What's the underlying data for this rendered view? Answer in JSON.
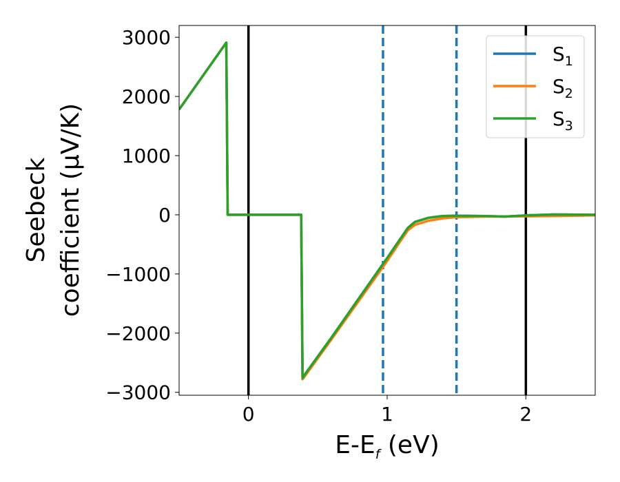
{
  "chart_data": {
    "type": "line",
    "xlabel": {
      "main": "E-E",
      "sub": "f",
      "unit": " (eV)"
    },
    "ylabel": {
      "line1": "Seebeck",
      "line2": "coefficient  (μV/K)"
    },
    "xlim": [
      -0.5,
      2.5
    ],
    "ylim": [
      -3050,
      3200
    ],
    "xticks": [
      0,
      1,
      2
    ],
    "xtick_labels": [
      "0",
      "1",
      "2"
    ],
    "yticks": [
      -3000,
      -2000,
      -1000,
      0,
      1000,
      2000,
      3000
    ],
    "ytick_labels": [
      "−3000",
      "−2000",
      "−1000",
      "0",
      "1000",
      "2000",
      "3000"
    ],
    "grid": false,
    "legend_position": "top-right",
    "vlines": [
      {
        "x": 0,
        "style": "solid",
        "color": "#000000"
      },
      {
        "x": 0.97,
        "style": "dashed",
        "color": "#1f77b4"
      },
      {
        "x": 1.5,
        "style": "dashed",
        "color": "#1f77b4"
      },
      {
        "x": 2,
        "style": "solid",
        "color": "#000000"
      }
    ],
    "series": [
      {
        "name": "S",
        "subscript": "1",
        "color": "#1f77b4",
        "x": [
          -0.5,
          -0.16,
          -0.15,
          0.0,
          0.38,
          0.39,
          0.4,
          0.6,
          0.8,
          1.0,
          1.1,
          1.15,
          1.2,
          1.3,
          1.4,
          1.5,
          1.7,
          1.85,
          2.0,
          2.2,
          2.5
        ],
        "y": [
          1780,
          2910,
          0,
          0,
          0,
          -2760,
          -2720,
          -2070,
          -1400,
          -730,
          -390,
          -220,
          -120,
          -50,
          -20,
          -15,
          -20,
          -30,
          -10,
          5,
          0
        ]
      },
      {
        "name": "S",
        "subscript": "2",
        "color": "#ff7f0e",
        "x": [
          -0.5,
          -0.16,
          -0.15,
          0.0,
          0.38,
          0.39,
          0.4,
          0.6,
          0.8,
          1.0,
          1.1,
          1.15,
          1.2,
          1.3,
          1.4,
          1.5,
          1.7,
          1.85,
          2.0,
          2.2,
          2.5
        ],
        "y": [
          1780,
          2910,
          0,
          0,
          0,
          -2780,
          -2750,
          -2100,
          -1440,
          -780,
          -430,
          -260,
          -170,
          -100,
          -60,
          -40,
          -30,
          -30,
          -25,
          -20,
          -10
        ]
      },
      {
        "name": "S",
        "subscript": "3",
        "color": "#2ca02c",
        "x": [
          -0.5,
          -0.16,
          -0.15,
          0.0,
          0.38,
          0.39,
          0.4,
          0.6,
          0.8,
          1.0,
          1.1,
          1.15,
          1.2,
          1.3,
          1.4,
          1.5,
          1.7,
          1.85,
          2.0,
          2.2,
          2.5
        ],
        "y": [
          1780,
          2910,
          0,
          0,
          0,
          -2760,
          -2720,
          -2070,
          -1400,
          -730,
          -390,
          -220,
          -120,
          -50,
          -20,
          -15,
          -20,
          -30,
          -10,
          5,
          0
        ]
      }
    ]
  }
}
